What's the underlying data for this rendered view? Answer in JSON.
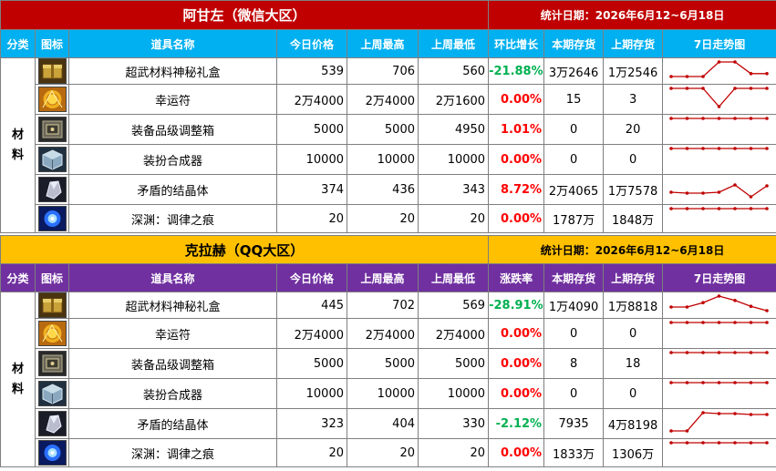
{
  "theme": {
    "s1_title_bg": "#c00000",
    "s1_header_bg": "#00b0f0",
    "s2_title_bg": "#ffc000",
    "s2_header_bg": "#7030a0",
    "up_color": "#ff0000",
    "down_color": "#00b050",
    "spark_color": "#c00000"
  },
  "sections": [
    {
      "title": "阿甘左（微信大区）",
      "date_range": "统计日期：2026年6月12~6月18日",
      "headers": [
        "分类",
        "图标",
        "道具名称",
        "今日价格",
        "上周最高",
        "上周最低",
        "环比增长",
        "本期存货",
        "上期存货",
        "7日走势图"
      ],
      "category": "材料",
      "rows": [
        {
          "icon": "golden-gift-box-icon",
          "name": "超武材料神秘礼盒",
          "today": "539",
          "high": "706",
          "low": "560",
          "change": "-21.88%",
          "dir": "down",
          "stock_now": "3万2646",
          "stock_prev": "1万2546",
          "trend": [
            1,
            1,
            1,
            0,
            0,
            0.8,
            0.8
          ]
        },
        {
          "icon": "amulet-icon",
          "name": "幸运符",
          "today": "2万4000",
          "high": "2万4000",
          "low": "2万1600",
          "change": "0.00%",
          "dir": "up",
          "stock_now": "15",
          "stock_prev": "3",
          "trend": [
            0,
            0,
            0,
            1,
            0,
            0,
            0
          ]
        },
        {
          "icon": "equipment-box-icon",
          "name": "装备品级调整箱",
          "today": "5000",
          "high": "5000",
          "low": "4950",
          "change": "1.01%",
          "dir": "up",
          "stock_now": "0",
          "stock_prev": "20",
          "trend": [
            0,
            0,
            0,
            0,
            0,
            0,
            0
          ]
        },
        {
          "icon": "cube-icon",
          "name": "装扮合成器",
          "today": "10000",
          "high": "10000",
          "low": "10000",
          "change": "0.00%",
          "dir": "up",
          "stock_now": "0",
          "stock_prev": "0",
          "trend": [
            0,
            0,
            0,
            0,
            0,
            0,
            0
          ]
        },
        {
          "icon": "crystal-icon",
          "name": "矛盾的结晶体",
          "today": "374",
          "high": "436",
          "low": "343",
          "change": "8.72%",
          "dir": "up",
          "stock_now": "2万4065",
          "stock_prev": "1万7578",
          "trend": [
            0.75,
            0.8,
            0.8,
            0.75,
            0.35,
            1,
            0.4
          ]
        },
        {
          "icon": "blue-orb-icon",
          "name": "深渊：调律之痕",
          "today": "20",
          "high": "20",
          "low": "20",
          "change": "0.00%",
          "dir": "up",
          "stock_now": "1787万",
          "stock_prev": "1848万",
          "trend": [
            0,
            0,
            0,
            0,
            0,
            0,
            0
          ]
        }
      ]
    },
    {
      "title": "克拉赫（QQ大区）",
      "date_range": "统计日期：2026年6月12~6月18日",
      "headers": [
        "分类",
        "图标",
        "道具名称",
        "今日价格",
        "上周最高",
        "上周最低",
        "涨跌率",
        "本期存货",
        "上期存货",
        "7日走势图"
      ],
      "category": "材料",
      "rows": [
        {
          "icon": "golden-gift-box-icon",
          "name": "超武材料神秘礼盒",
          "today": "445",
          "high": "702",
          "low": "569",
          "change": "-28.91%",
          "dir": "down",
          "stock_now": "1万4090",
          "stock_prev": "1万8818",
          "trend": [
            0.75,
            0.75,
            0.45,
            0,
            0.3,
            0.7,
            1
          ]
        },
        {
          "icon": "amulet-icon",
          "name": "幸运符",
          "today": "2万4000",
          "high": "2万4000",
          "low": "2万4000",
          "change": "0.00%",
          "dir": "up",
          "stock_now": "0",
          "stock_prev": "0",
          "trend": [
            0,
            0,
            0,
            0,
            0,
            0,
            0
          ]
        },
        {
          "icon": "equipment-box-icon",
          "name": "装备品级调整箱",
          "today": "5000",
          "high": "5000",
          "low": "5000",
          "change": "0.00%",
          "dir": "up",
          "stock_now": "8",
          "stock_prev": "18",
          "trend": [
            0,
            0,
            0,
            0,
            0,
            0,
            0
          ]
        },
        {
          "icon": "cube-icon",
          "name": "装扮合成器",
          "today": "10000",
          "high": "10000",
          "low": "10000",
          "change": "0.00%",
          "dir": "up",
          "stock_now": "0",
          "stock_prev": "0",
          "trend": [
            0,
            0,
            0,
            0,
            0,
            0,
            0
          ]
        },
        {
          "icon": "crystal-icon",
          "name": "矛盾的结晶体",
          "today": "323",
          "high": "404",
          "low": "330",
          "change": "-2.12%",
          "dir": "down",
          "stock_now": "7935",
          "stock_prev": "4万8198",
          "trend": [
            1,
            1,
            0,
            0.05,
            0.05,
            0.1,
            0.1
          ]
        },
        {
          "icon": "blue-orb-icon",
          "name": "深渊：调律之痕",
          "today": "20",
          "high": "20",
          "low": "20",
          "change": "0.00%",
          "dir": "up",
          "stock_now": "1833万",
          "stock_prev": "1306万",
          "trend": [
            0,
            0,
            0,
            0,
            0,
            0,
            0
          ]
        }
      ]
    }
  ]
}
